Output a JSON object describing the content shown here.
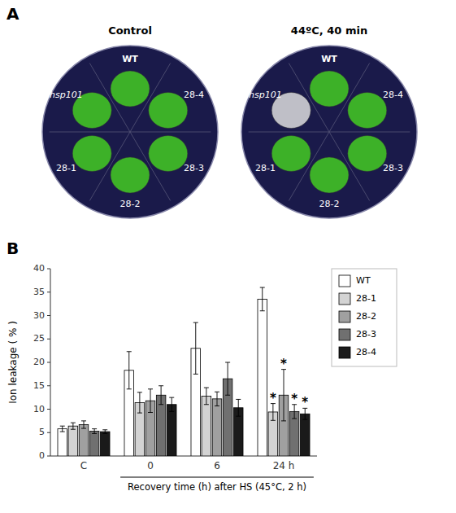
{
  "chart_data": [
    {
      "type": "image",
      "subtitle": "A",
      "title": "Control",
      "annotations": [
        "WT",
        "28-4",
        "28-3",
        "28-2",
        "28-1",
        "hsp101"
      ],
      "colors": [
        "#44cc22",
        "#44cc22",
        "#44cc22",
        "#44cc22",
        "#44cc22",
        "#44cc22"
      ]
    },
    {
      "type": "image",
      "title": "44ºC, 40 min",
      "annotations": [
        "WT",
        "28-4",
        "28-3",
        "28-2",
        "28-1",
        "hsp101"
      ],
      "colors": [
        "#44cc22",
        "#44cc22",
        "#44cc22",
        "#44cc22",
        "#44cc22",
        "#dddddd"
      ]
    },
    {
      "type": "bar",
      "subtitle": "B",
      "y_label": "Ion leakage ( % )",
      "x_label": "Recovery time (h) after HS (45°C, 2 h)",
      "categories": [
        "C",
        "0",
        "6",
        "24 h"
      ],
      "ylim": [
        0,
        40
      ],
      "yticks": [
        0,
        5,
        10,
        15,
        20,
        25,
        30,
        35,
        40
      ],
      "grid": false,
      "legend": "upper right",
      "significance_mark": "*",
      "series": [
        {
          "name": "WT",
          "color": "#ffffff",
          "values": [
            5.8,
            18.3,
            23.0,
            33.5
          ],
          "errors": [
            0.6,
            4.0,
            5.5,
            2.5
          ],
          "significance": [
            false,
            false,
            false,
            false
          ]
        },
        {
          "name": "28-1",
          "color": "#d3d3d3",
          "values": [
            6.4,
            11.4,
            12.8,
            9.4
          ],
          "errors": [
            0.7,
            2.2,
            1.8,
            1.8
          ],
          "significance": [
            false,
            false,
            false,
            true
          ]
        },
        {
          "name": "28-2",
          "color": "#a0a0a0",
          "values": [
            6.7,
            11.8,
            12.2,
            13.0
          ],
          "errors": [
            0.8,
            2.5,
            1.5,
            5.5
          ],
          "significance": [
            false,
            false,
            false,
            true
          ]
        },
        {
          "name": "28-3",
          "color": "#707070",
          "values": [
            5.3,
            13.0,
            16.5,
            9.5
          ],
          "errors": [
            0.5,
            2.0,
            3.5,
            1.5
          ],
          "significance": [
            false,
            false,
            false,
            true
          ]
        },
        {
          "name": "28-4",
          "color": "#1a1a1a",
          "values": [
            5.2,
            11.0,
            10.3,
            9.0
          ],
          "errors": [
            0.4,
            1.5,
            1.8,
            1.2
          ],
          "significance": [
            false,
            false,
            false,
            true
          ]
        }
      ]
    }
  ]
}
